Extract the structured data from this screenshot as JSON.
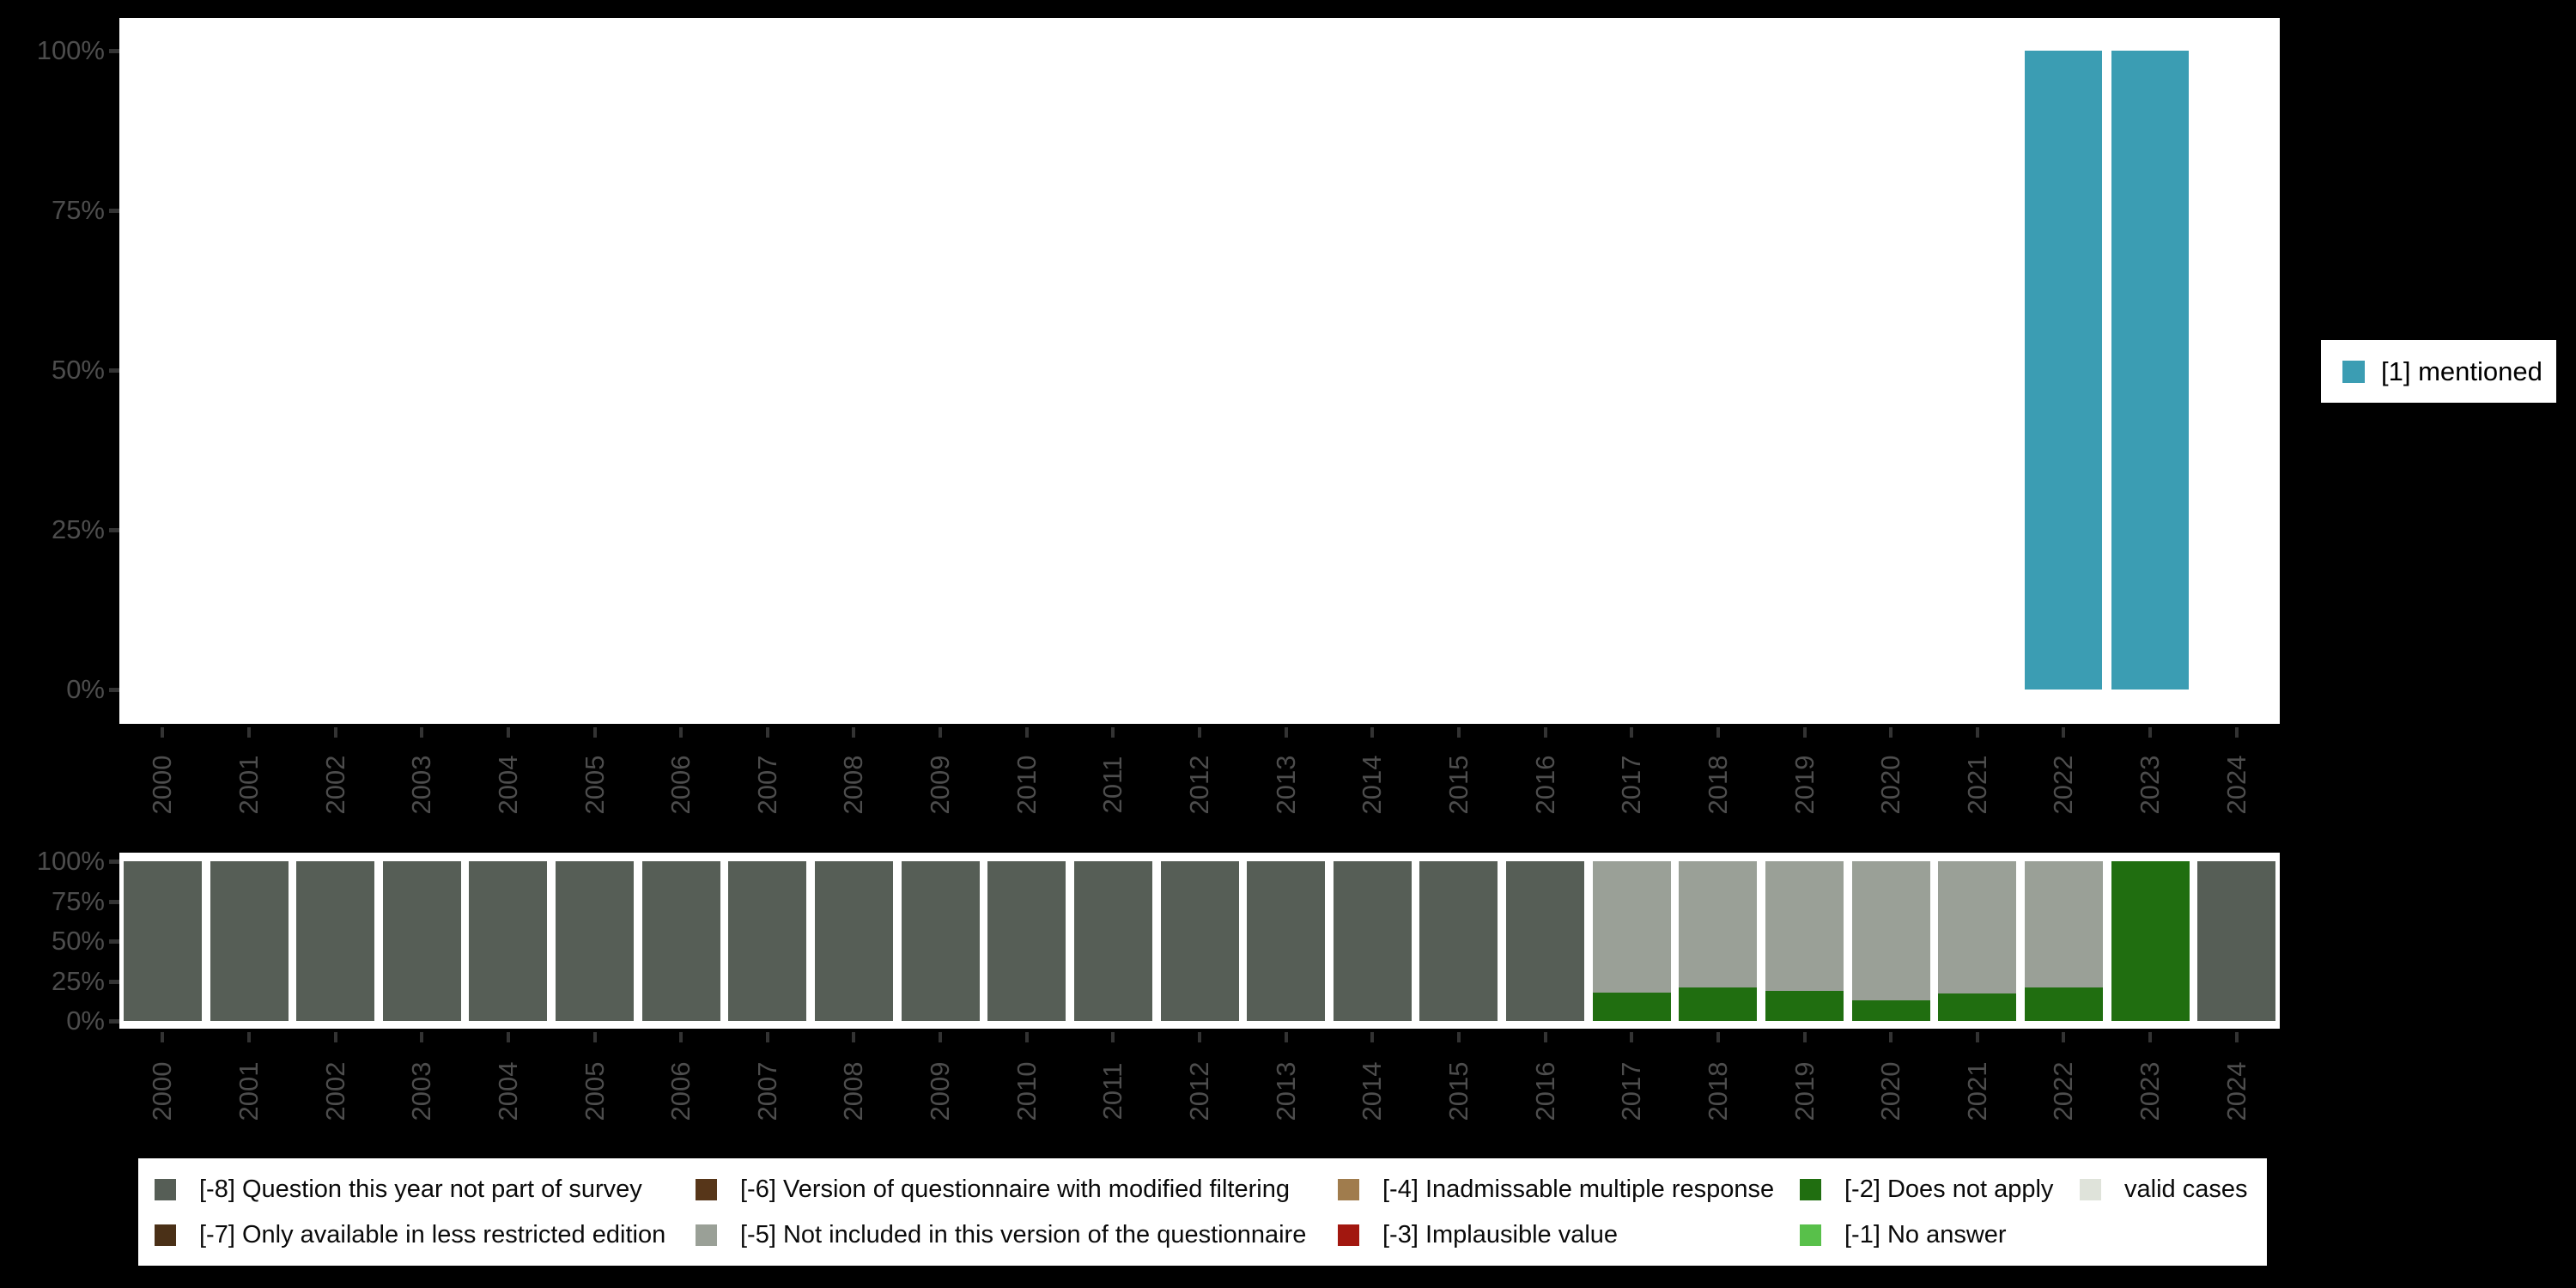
{
  "background": "#000000",
  "axis": {
    "text_color": "#4d4d4d",
    "tick_color": "#333333"
  },
  "chart_data": [
    {
      "id": "mentioned",
      "type": "bar",
      "stacked": true,
      "y_unit": "percent",
      "title": "",
      "ylim": [
        0,
        100
      ],
      "grid": false,
      "legend_position": "right",
      "y_ticks": [
        "0%",
        "25%",
        "50%",
        "75%",
        "100%"
      ],
      "categories": [
        "2000",
        "2001",
        "2002",
        "2003",
        "2004",
        "2005",
        "2006",
        "2007",
        "2008",
        "2009",
        "2010",
        "2011",
        "2012",
        "2013",
        "2014",
        "2015",
        "2016",
        "2017",
        "2018",
        "2019",
        "2020",
        "2021",
        "2022",
        "2023",
        "2024"
      ],
      "series": [
        {
          "name": "[1] mentioned",
          "color": "#3b9db3",
          "values": [
            0,
            0,
            0,
            0,
            0,
            0,
            0,
            0,
            0,
            0,
            0,
            0,
            0,
            0,
            0,
            0,
            0,
            0,
            0,
            0,
            0,
            0,
            100,
            100,
            0
          ]
        }
      ]
    },
    {
      "id": "missing",
      "type": "bar",
      "stacked": true,
      "y_unit": "percent",
      "title": "",
      "ylim": [
        0,
        100
      ],
      "grid": false,
      "legend_position": "bottom",
      "y_ticks": [
        "0%",
        "25%",
        "50%",
        "75%",
        "100%"
      ],
      "categories": [
        "2000",
        "2001",
        "2002",
        "2003",
        "2004",
        "2005",
        "2006",
        "2007",
        "2008",
        "2009",
        "2010",
        "2011",
        "2012",
        "2013",
        "2014",
        "2015",
        "2016",
        "2017",
        "2018",
        "2019",
        "2020",
        "2021",
        "2022",
        "2023",
        "2024"
      ],
      "series": [
        {
          "name": "[-2] Does not apply",
          "color": "#206e10",
          "values": [
            0,
            0,
            0,
            0,
            0,
            0,
            0,
            0,
            0,
            0,
            0,
            0,
            0,
            0,
            0,
            0,
            0,
            18,
            21,
            19,
            13,
            17,
            21,
            100,
            0
          ]
        },
        {
          "name": "[-5] Not included in this version of the questionnaire",
          "color": "#9aa097",
          "values": [
            0,
            0,
            0,
            0,
            0,
            0,
            0,
            0,
            0,
            0,
            0,
            0,
            0,
            0,
            0,
            0,
            0,
            82,
            79,
            81,
            87,
            83,
            79,
            0,
            0
          ]
        },
        {
          "name": "[-8] Question this year not part of survey",
          "color": "#565e56",
          "values": [
            100,
            100,
            100,
            100,
            100,
            100,
            100,
            100,
            100,
            100,
            100,
            100,
            100,
            100,
            100,
            100,
            100,
            0,
            0,
            0,
            0,
            0,
            0,
            0,
            100
          ]
        }
      ]
    }
  ],
  "legend": {
    "mentioned": {
      "label": "[1] mentioned",
      "color": "#3b9db3"
    },
    "missing_items": [
      {
        "label": "[-8] Question this year not part of survey",
        "color": "#565e56"
      },
      {
        "label": "[-6] Version of questionnaire with modified filtering",
        "color": "#573619"
      },
      {
        "label": "[-4] Inadmissable multiple response",
        "color": "#a07c4d"
      },
      {
        "label": "[-2] Does not apply",
        "color": "#206e10"
      },
      {
        "label": "valid cases",
        "color": "#dfe3da"
      },
      {
        "label": "[-7] Only available in less restricted edition",
        "color": "#4a3017"
      },
      {
        "label": "[-5] Not included in this version of the questionnaire",
        "color": "#9aa097"
      },
      {
        "label": "[-3] Implausible value",
        "color": "#a2170f"
      },
      {
        "label": "[-1] No answer",
        "color": "#58c04a"
      }
    ]
  }
}
